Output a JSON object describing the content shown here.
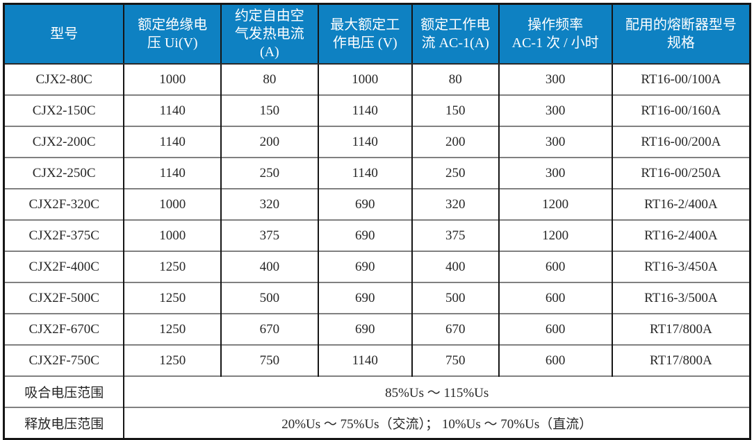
{
  "table": {
    "columns": [
      {
        "label": "型号"
      },
      {
        "label": "额定绝缘电\n压 Ui(V)"
      },
      {
        "label": "约定自由空\n气发热电流\n(A)"
      },
      {
        "label": "最大额定工\n作电压 (V)"
      },
      {
        "label": "额定工作电\n流 AC-1(A)"
      },
      {
        "label": "操作频率\nAC-1 次 / 小时"
      },
      {
        "label": "配用的熔断器型号\n规格"
      }
    ],
    "rows": [
      [
        "CJX2-80C",
        "1000",
        "80",
        "1000",
        "80",
        "300",
        "RT16-00/100A"
      ],
      [
        "CJX2-150C",
        "1140",
        "150",
        "1140",
        "150",
        "300",
        "RT16-00/160A"
      ],
      [
        "CJX2-200C",
        "1140",
        "200",
        "1140",
        "200",
        "300",
        "RT16-00/200A"
      ],
      [
        "CJX2-250C",
        "1140",
        "250",
        "1140",
        "250",
        "300",
        "RT16-00/250A"
      ],
      [
        "CJX2F-320C",
        "1000",
        "320",
        "690",
        "320",
        "1200",
        "RT16-2/400A"
      ],
      [
        "CJX2F-375C",
        "1000",
        "375",
        "690",
        "375",
        "1200",
        "RT16-2/400A"
      ],
      [
        "CJX2F-400C",
        "1250",
        "400",
        "690",
        "400",
        "600",
        "RT16-3/450A"
      ],
      [
        "CJX2F-500C",
        "1250",
        "500",
        "690",
        "500",
        "600",
        "RT16-3/500A"
      ],
      [
        "CJX2F-670C",
        "1250",
        "670",
        "690",
        "670",
        "600",
        "RT17/800A"
      ],
      [
        "CJX2F-750C",
        "1250",
        "750",
        "1140",
        "750",
        "600",
        "RT17/800A"
      ]
    ],
    "footer_rows": [
      {
        "label": "吸合电压范围",
        "value": "85%Us ～ 115%Us"
      },
      {
        "label": "释放电压范围",
        "value": "20%Us ～ 75%Us（交流）； 10%Us ～ 70%Us（直流）"
      }
    ],
    "colors": {
      "header_bg": "#0e81c2",
      "header_text": "#ffffff",
      "body_text": "#262626",
      "grid_vertical": "#151515",
      "grid_horizontal": "#808080",
      "outer_border": "#151515"
    }
  }
}
